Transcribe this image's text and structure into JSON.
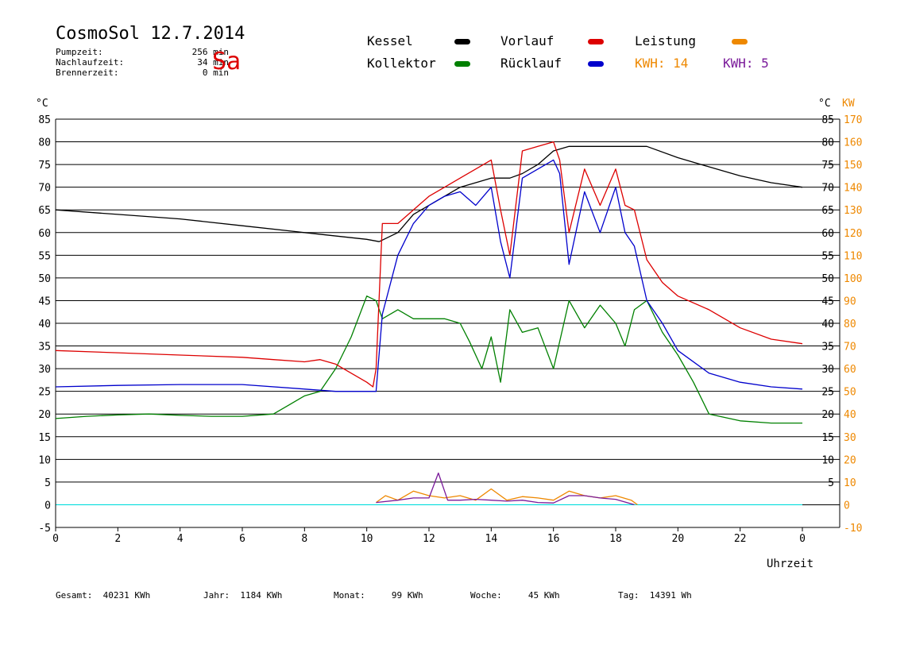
{
  "header": {
    "title": "CosmoSol 12.7.2014",
    "day": "Sa",
    "stats": [
      {
        "label": "Pumpzeit:",
        "value": "256 min"
      },
      {
        "label": "Nachlaufzeit:",
        "value": "34 min"
      },
      {
        "label": "Brennerzeit:",
        "value": "0 min"
      }
    ]
  },
  "legend": {
    "kessel": "Kessel",
    "kollektor": "Kollektor",
    "vorlauf": "Vorlauf",
    "ruecklauf": "Rücklauf",
    "leistung": "Leistung",
    "kwh1": "KWH: 14",
    "kwh2": "KWH: 5"
  },
  "colors": {
    "kessel": "#000000",
    "kollektor": "#008000",
    "vorlauf": "#dd0000",
    "ruecklauf": "#0000cc",
    "leistung": "#ee8800",
    "kwh2": "#7a1a9a",
    "zero": "#00dddd"
  },
  "footer": {
    "gesamt": "Gesamt:  40231 KWh",
    "jahr": "Jahr:  1184 KWh",
    "monat": "Monat:     99 KWh",
    "woche": "Woche:     45 KWh",
    "tag": "Tag:  14391 Wh"
  },
  "chart_data": {
    "type": "line",
    "title": "CosmoSol 12.7.2014",
    "xlabel": "Uhrzeit",
    "ylabel_left": "°C",
    "ylabel_right_1": "°C",
    "ylabel_right_2": "KW",
    "xlim": [
      0,
      24
    ],
    "ylim": [
      -5,
      85
    ],
    "ylim_right_kw": [
      -10,
      170
    ],
    "x_ticks": [
      "0",
      "2",
      "4",
      "6",
      "8",
      "10",
      "12",
      "14",
      "16",
      "18",
      "20",
      "22",
      "0"
    ],
    "y_ticks_left": [
      "85",
      "80",
      "75",
      "70",
      "65",
      "60",
      "55",
      "50",
      "45",
      "40",
      "35",
      "30",
      "25",
      "20",
      "15",
      "10",
      "5",
      "0",
      "-5"
    ],
    "y_ticks_right": [
      "85",
      "80",
      "75",
      "70",
      "65",
      "60",
      "55",
      "50",
      "45",
      "40",
      "35",
      "30",
      "25",
      "20",
      "15",
      "10",
      "5"
    ],
    "y_ticks_kw": [
      "170",
      "160",
      "150",
      "140",
      "130",
      "120",
      "110",
      "100",
      "90",
      "80",
      "70",
      "60",
      "50",
      "40",
      "30",
      "20",
      "10",
      "0",
      "-10"
    ],
    "grid": true,
    "legend_position": "top",
    "series": [
      {
        "name": "Kessel",
        "x": [
          0,
          2,
          4,
          6,
          8,
          10,
          10.4,
          11,
          11.5,
          12,
          12.5,
          13,
          13.5,
          14,
          14.6,
          15,
          15.5,
          16,
          16.5,
          17,
          17.5,
          18,
          19,
          20,
          21,
          22,
          23,
          24
        ],
        "y": [
          65,
          64,
          63,
          61.5,
          60,
          58.5,
          58,
          60,
          64,
          66,
          68,
          70,
          71,
          72,
          72,
          73,
          75,
          78,
          79,
          79,
          79,
          79,
          79,
          76.5,
          74.5,
          72.5,
          71,
          70
        ]
      },
      {
        "name": "Kollektor",
        "x": [
          0,
          1,
          2,
          3,
          4,
          5,
          6,
          7,
          7.5,
          8,
          8.5,
          9,
          9.5,
          10,
          10.3,
          10.5,
          11,
          11.5,
          12,
          12.5,
          13,
          13.3,
          13.7,
          14,
          14.3,
          14.6,
          15,
          15.5,
          16,
          16.5,
          17,
          17.5,
          18,
          18.3,
          18.6,
          19,
          19.5,
          20,
          20.5,
          21,
          22,
          23,
          24
        ],
        "y": [
          19,
          19.5,
          19.8,
          20,
          19.7,
          19.5,
          19.5,
          20,
          22,
          24,
          25,
          30,
          37,
          46,
          45,
          41,
          43,
          41,
          41,
          41,
          40,
          36,
          30,
          37,
          27,
          43,
          38,
          39,
          30,
          45,
          39,
          44,
          40,
          35,
          43,
          45,
          38,
          33,
          27,
          20,
          18.5,
          18,
          18
        ]
      },
      {
        "name": "Vorlauf",
        "x": [
          0,
          2,
          4,
          6,
          7,
          8,
          8.5,
          9,
          9.5,
          10,
          10.2,
          10.3,
          10.5,
          11,
          11.5,
          12,
          12.5,
          13,
          13.5,
          14,
          14.3,
          14.6,
          15,
          15.5,
          16,
          16.2,
          16.5,
          17,
          17.5,
          18,
          18.3,
          18.6,
          19,
          19.5,
          20,
          21,
          22,
          23,
          24
        ],
        "y": [
          34,
          33.5,
          33,
          32.5,
          32,
          31.5,
          32,
          31,
          29,
          27,
          26,
          30,
          62,
          62,
          65,
          68,
          70,
          72,
          74,
          76,
          65,
          55,
          78,
          79,
          80,
          76,
          60,
          74,
          66,
          74,
          66,
          65,
          54,
          49,
          46,
          43,
          39,
          36.5,
          35.5
        ]
      },
      {
        "name": "Rücklauf",
        "x": [
          0,
          2,
          4,
          6,
          8,
          9,
          10,
          10.3,
          10.5,
          11,
          11.5,
          12,
          12.5,
          13,
          13.5,
          14,
          14.3,
          14.6,
          15,
          15.5,
          16,
          16.2,
          16.5,
          17,
          17.5,
          18,
          18.3,
          18.6,
          19,
          19.5,
          20,
          21,
          22,
          23,
          24
        ],
        "y": [
          26,
          26.3,
          26.5,
          26.5,
          25.5,
          25,
          25,
          25,
          42,
          55,
          62,
          66,
          68,
          69,
          66,
          70,
          58,
          50,
          72,
          74,
          76,
          73,
          53,
          69,
          60,
          70,
          60,
          57,
          45,
          40,
          34,
          29,
          27,
          26,
          25.5
        ]
      },
      {
        "name": "Leistung",
        "x": [
          10.3,
          10.6,
          11,
          11.5,
          12,
          12.5,
          13,
          13.5,
          14,
          14.5,
          15,
          15.5,
          16,
          16.5,
          17,
          17.5,
          18,
          18.5,
          18.7
        ],
        "y": [
          0.5,
          2,
          1,
          3,
          2,
          1.5,
          2,
          1,
          3.5,
          1,
          1.8,
          1.5,
          1,
          3,
          2,
          1.5,
          2,
          1,
          0
        ]
      },
      {
        "name": "KWH: 5",
        "x": [
          10.3,
          11,
          11.5,
          12,
          12.3,
          12.6,
          13,
          13.5,
          14,
          14.5,
          15,
          15.5,
          16,
          16.5,
          17,
          17.5,
          18,
          18.6
        ],
        "y": [
          0.5,
          1,
          1.5,
          1.5,
          7,
          1,
          1,
          1.2,
          1,
          0.8,
          1,
          0.5,
          0.4,
          2,
          2,
          1.5,
          1.2,
          0
        ]
      }
    ]
  }
}
